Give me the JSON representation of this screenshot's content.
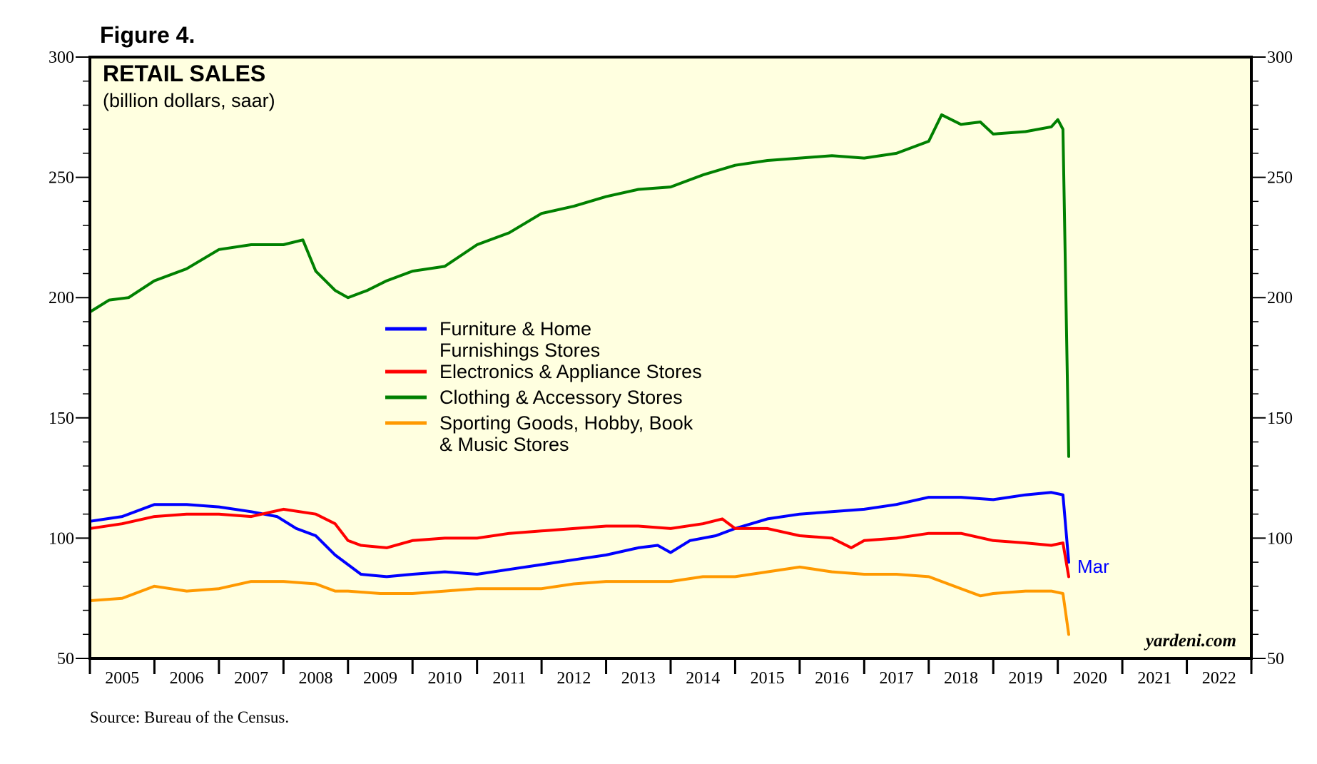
{
  "figure_label": "Figure 4.",
  "source": "Source: Bureau of the Census.",
  "watermark": "yardeni.com",
  "end_label": "Mar",
  "chart_data": {
    "type": "line",
    "title": "RETAIL SALES",
    "subtitle": "(billion dollars, saar)",
    "xlabel": "",
    "ylabel": "",
    "ylim": [
      50,
      300
    ],
    "yticks": [
      50,
      100,
      150,
      200,
      250,
      300
    ],
    "xlim": [
      2005,
      2023
    ],
    "x_tick_labels": [
      "2005",
      "2006",
      "2007",
      "2008",
      "2009",
      "2010",
      "2011",
      "2012",
      "2013",
      "2014",
      "2015",
      "2016",
      "2017",
      "2018",
      "2019",
      "2020",
      "2021",
      "2022"
    ],
    "legend_position": "center",
    "series": [
      {
        "name": "Furniture & Home Furnishings Stores",
        "legend_lines": [
          "Furniture & Home",
          "Furnishings Stores"
        ],
        "color": "#0000ff",
        "points": [
          [
            2005.0,
            107
          ],
          [
            2005.5,
            109
          ],
          [
            2006.0,
            114
          ],
          [
            2006.5,
            114
          ],
          [
            2007.0,
            113
          ],
          [
            2007.5,
            111
          ],
          [
            2007.9,
            109
          ],
          [
            2008.2,
            104
          ],
          [
            2008.5,
            101
          ],
          [
            2008.8,
            93
          ],
          [
            2009.0,
            89
          ],
          [
            2009.2,
            85
          ],
          [
            2009.6,
            84
          ],
          [
            2010.0,
            85
          ],
          [
            2010.5,
            86
          ],
          [
            2011.0,
            85
          ],
          [
            2011.5,
            87
          ],
          [
            2012.0,
            89
          ],
          [
            2012.5,
            91
          ],
          [
            2013.0,
            93
          ],
          [
            2013.5,
            96
          ],
          [
            2013.8,
            97
          ],
          [
            2014.0,
            94
          ],
          [
            2014.3,
            99
          ],
          [
            2014.7,
            101
          ],
          [
            2015.0,
            104
          ],
          [
            2015.5,
            108
          ],
          [
            2016.0,
            110
          ],
          [
            2016.5,
            111
          ],
          [
            2017.0,
            112
          ],
          [
            2017.5,
            114
          ],
          [
            2018.0,
            117
          ],
          [
            2018.5,
            117
          ],
          [
            2019.0,
            116
          ],
          [
            2019.5,
            118
          ],
          [
            2019.9,
            119
          ],
          [
            2020.08,
            118
          ],
          [
            2020.17,
            90
          ]
        ]
      },
      {
        "name": "Electronics & Appliance Stores",
        "legend_lines": [
          "Electronics & Appliance Stores"
        ],
        "color": "#ff0000",
        "points": [
          [
            2005.0,
            104
          ],
          [
            2005.5,
            106
          ],
          [
            2006.0,
            109
          ],
          [
            2006.5,
            110
          ],
          [
            2007.0,
            110
          ],
          [
            2007.5,
            109
          ],
          [
            2008.0,
            112
          ],
          [
            2008.5,
            110
          ],
          [
            2008.8,
            106
          ],
          [
            2009.0,
            99
          ],
          [
            2009.2,
            97
          ],
          [
            2009.6,
            96
          ],
          [
            2010.0,
            99
          ],
          [
            2010.5,
            100
          ],
          [
            2011.0,
            100
          ],
          [
            2011.5,
            102
          ],
          [
            2012.0,
            103
          ],
          [
            2012.5,
            104
          ],
          [
            2013.0,
            105
          ],
          [
            2013.5,
            105
          ],
          [
            2014.0,
            104
          ],
          [
            2014.5,
            106
          ],
          [
            2014.8,
            108
          ],
          [
            2015.0,
            104
          ],
          [
            2015.5,
            104
          ],
          [
            2016.0,
            101
          ],
          [
            2016.5,
            100
          ],
          [
            2016.8,
            96
          ],
          [
            2017.0,
            99
          ],
          [
            2017.5,
            100
          ],
          [
            2018.0,
            102
          ],
          [
            2018.5,
            102
          ],
          [
            2019.0,
            99
          ],
          [
            2019.5,
            98
          ],
          [
            2019.9,
            97
          ],
          [
            2020.08,
            98
          ],
          [
            2020.17,
            84
          ]
        ]
      },
      {
        "name": "Clothing & Accessory Stores",
        "legend_lines": [
          "Clothing & Accessory Stores"
        ],
        "color": "#008000",
        "points": [
          [
            2005.0,
            194
          ],
          [
            2005.3,
            199
          ],
          [
            2005.6,
            200
          ],
          [
            2006.0,
            207
          ],
          [
            2006.5,
            212
          ],
          [
            2007.0,
            220
          ],
          [
            2007.5,
            222
          ],
          [
            2008.0,
            222
          ],
          [
            2008.3,
            224
          ],
          [
            2008.5,
            211
          ],
          [
            2008.8,
            203
          ],
          [
            2009.0,
            200
          ],
          [
            2009.3,
            203
          ],
          [
            2009.6,
            207
          ],
          [
            2010.0,
            211
          ],
          [
            2010.5,
            213
          ],
          [
            2011.0,
            222
          ],
          [
            2011.5,
            227
          ],
          [
            2012.0,
            235
          ],
          [
            2012.5,
            238
          ],
          [
            2013.0,
            242
          ],
          [
            2013.5,
            245
          ],
          [
            2014.0,
            246
          ],
          [
            2014.5,
            251
          ],
          [
            2015.0,
            255
          ],
          [
            2015.5,
            257
          ],
          [
            2016.0,
            258
          ],
          [
            2016.5,
            259
          ],
          [
            2017.0,
            258
          ],
          [
            2017.5,
            260
          ],
          [
            2018.0,
            265
          ],
          [
            2018.2,
            276
          ],
          [
            2018.5,
            272
          ],
          [
            2018.8,
            273
          ],
          [
            2019.0,
            268
          ],
          [
            2019.5,
            269
          ],
          [
            2019.9,
            271
          ],
          [
            2020.0,
            274
          ],
          [
            2020.08,
            270
          ],
          [
            2020.17,
            134
          ]
        ]
      },
      {
        "name": "Sporting Goods, Hobby, Book & Music Stores",
        "legend_lines": [
          "Sporting Goods, Hobby, Book",
          "& Music Stores"
        ],
        "color": "#ff9900",
        "points": [
          [
            2005.0,
            74
          ],
          [
            2005.5,
            75
          ],
          [
            2006.0,
            80
          ],
          [
            2006.5,
            78
          ],
          [
            2007.0,
            79
          ],
          [
            2007.5,
            82
          ],
          [
            2008.0,
            82
          ],
          [
            2008.5,
            81
          ],
          [
            2008.8,
            78
          ],
          [
            2009.0,
            78
          ],
          [
            2009.5,
            77
          ],
          [
            2010.0,
            77
          ],
          [
            2010.5,
            78
          ],
          [
            2011.0,
            79
          ],
          [
            2011.5,
            79
          ],
          [
            2012.0,
            79
          ],
          [
            2012.5,
            81
          ],
          [
            2013.0,
            82
          ],
          [
            2013.5,
            82
          ],
          [
            2014.0,
            82
          ],
          [
            2014.5,
            84
          ],
          [
            2015.0,
            84
          ],
          [
            2015.5,
            86
          ],
          [
            2016.0,
            88
          ],
          [
            2016.5,
            86
          ],
          [
            2017.0,
            85
          ],
          [
            2017.5,
            85
          ],
          [
            2018.0,
            84
          ],
          [
            2018.5,
            79
          ],
          [
            2018.8,
            76
          ],
          [
            2019.0,
            77
          ],
          [
            2019.5,
            78
          ],
          [
            2019.9,
            78
          ],
          [
            2020.08,
            77
          ],
          [
            2020.17,
            60
          ]
        ]
      }
    ]
  }
}
